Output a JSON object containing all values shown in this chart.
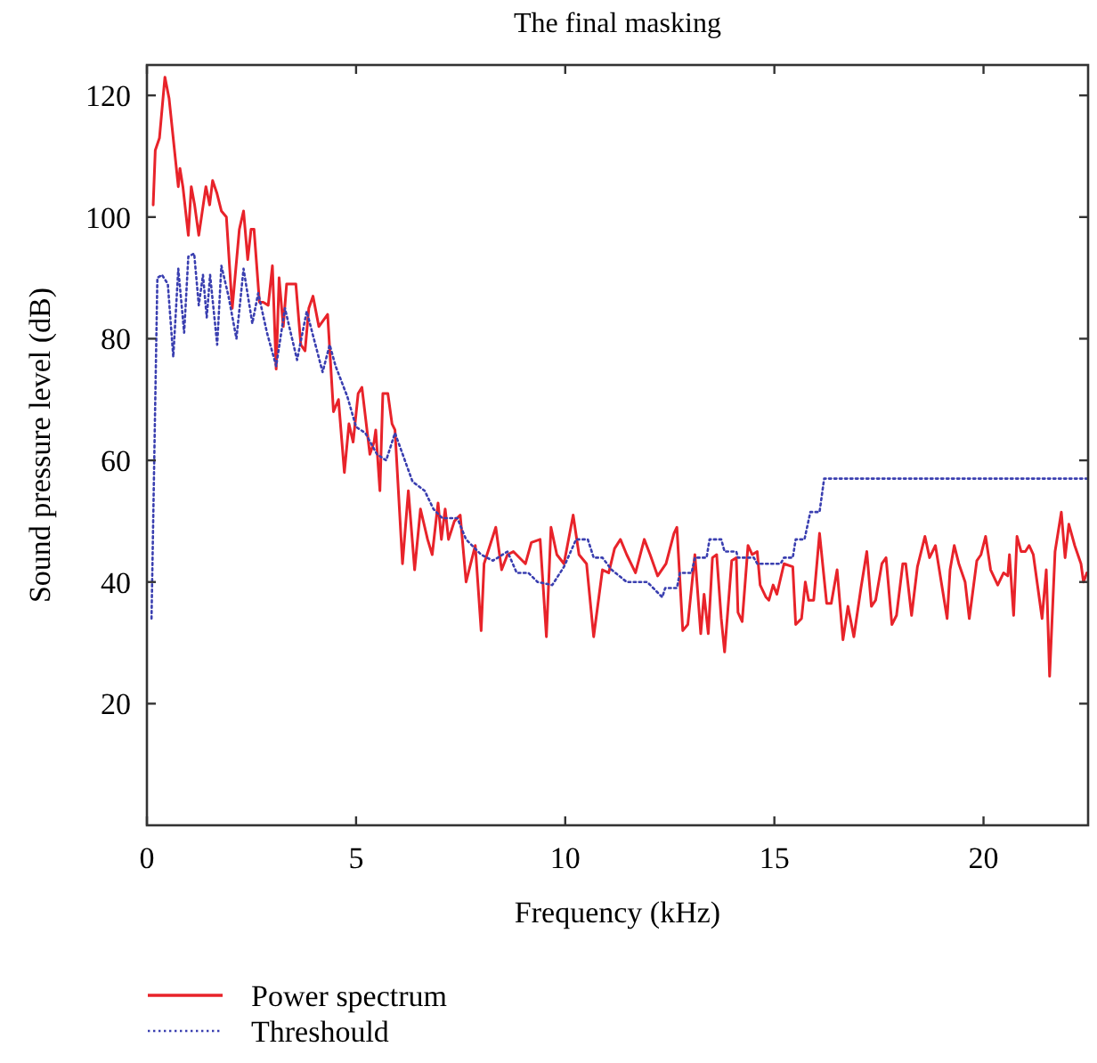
{
  "chart_data": {
    "type": "line",
    "title": "The final masking",
    "xlabel": "Frequency (kHz)",
    "ylabel": "Sound pressure level (dB)",
    "xlim": [
      0,
      22.5
    ],
    "xticks": [
      0,
      5,
      10,
      15,
      20
    ],
    "ylim": [
      0,
      125
    ],
    "yticks": [
      20,
      40,
      60,
      80,
      100,
      120
    ],
    "grid": false,
    "legend": "bottom",
    "marker": "none",
    "series": [
      {
        "name": "Power spectrum",
        "color": "#e8232a",
        "line_style": "solid",
        "x": [
          0.15,
          0.2,
          0.3,
          0.43,
          0.53,
          0.75,
          0.79,
          0.86,
          0.99,
          1.06,
          1.14,
          1.24,
          1.41,
          1.5,
          1.57,
          1.67,
          1.78,
          1.9,
          2.04,
          2.21,
          2.31,
          2.41,
          2.49,
          2.56,
          2.69,
          2.78,
          2.9,
          3.0,
          3.09,
          3.16,
          3.26,
          3.34,
          3.46,
          3.56,
          3.68,
          3.78,
          3.87,
          3.97,
          4.11,
          4.32,
          4.46,
          4.58,
          4.72,
          4.83,
          4.93,
          5.05,
          5.14,
          5.33,
          5.43,
          5.47,
          5.57,
          5.64,
          5.76,
          5.86,
          5.93,
          6.11,
          6.25,
          6.4,
          6.54,
          6.71,
          6.82,
          6.96,
          7.04,
          7.13,
          7.21,
          7.35,
          7.49,
          7.63,
          7.85,
          7.99,
          8.06,
          8.34,
          8.48,
          8.62,
          8.76,
          9.05,
          9.19,
          9.4,
          9.55,
          9.66,
          9.8,
          9.97,
          10.19,
          10.33,
          10.51,
          10.68,
          10.89,
          11.04,
          11.18,
          11.32,
          11.47,
          11.68,
          11.89,
          12.03,
          12.21,
          12.41,
          12.6,
          12.67,
          12.81,
          12.93,
          13.1,
          13.24,
          13.32,
          13.42,
          13.52,
          13.62,
          13.73,
          13.81,
          13.98,
          14.09,
          14.13,
          14.23,
          14.37,
          14.47,
          14.59,
          14.66,
          14.8,
          14.87,
          14.97,
          15.06,
          15.23,
          15.44,
          15.51,
          15.65,
          15.74,
          15.82,
          15.94,
          16.08,
          16.25,
          16.36,
          16.5,
          16.64,
          16.76,
          16.9,
          17.07,
          17.21,
          17.32,
          17.42,
          17.57,
          17.67,
          17.81,
          17.92,
          18.07,
          18.14,
          18.28,
          18.42,
          18.6,
          18.71,
          18.85,
          18.99,
          19.13,
          19.2,
          19.3,
          19.41,
          19.56,
          19.66,
          19.84,
          19.94,
          20.05,
          20.17,
          20.34,
          20.48,
          20.58,
          20.62,
          20.72,
          20.8,
          20.9,
          21.0,
          21.09,
          21.19,
          21.3,
          21.4,
          21.5,
          21.58,
          21.71,
          21.86,
          21.95,
          22.04,
          22.18,
          22.33,
          22.39,
          22.47
        ],
        "values": [
          102,
          111,
          113,
          123,
          119.5,
          105,
          108,
          105,
          97,
          105,
          102,
          97,
          105,
          102,
          106,
          104,
          101,
          100,
          85,
          98,
          101,
          93,
          98,
          98,
          86,
          86,
          85.5,
          92,
          75,
          90,
          82,
          89,
          89,
          89,
          79,
          78,
          85,
          87,
          82,
          84,
          68,
          70,
          58,
          66,
          63,
          71,
          72,
          61,
          63,
          65,
          55,
          71,
          71,
          66,
          65,
          43,
          55,
          42,
          52,
          47,
          44.5,
          53,
          47,
          52,
          47,
          50,
          51,
          40,
          46,
          32,
          43,
          49,
          42,
          44.5,
          45,
          43,
          46.5,
          47,
          31,
          49,
          44.5,
          43,
          51,
          44.5,
          43,
          31,
          42,
          41.5,
          45.5,
          47,
          44.5,
          41.5,
          47,
          44.5,
          41,
          43,
          48,
          49,
          32,
          33,
          44.5,
          31.5,
          38,
          31.5,
          44,
          44.5,
          34,
          28.5,
          43.5,
          44,
          35,
          33.5,
          46,
          44.5,
          45,
          39.5,
          37.5,
          37,
          39.5,
          38,
          43,
          42.5,
          33,
          34,
          40,
          37,
          37,
          48,
          36.5,
          36.5,
          42,
          30.5,
          36,
          31,
          39,
          45,
          36,
          37,
          43,
          44,
          33,
          34.5,
          43,
          43,
          34.5,
          42.5,
          47.5,
          44,
          46,
          40,
          34,
          42,
          46,
          43,
          40,
          34,
          43.5,
          44.5,
          47.5,
          42,
          39.5,
          41.5,
          41,
          44.5,
          34.5,
          47.5,
          45,
          45,
          46,
          44.5,
          39,
          34,
          42,
          24.5,
          45,
          51.5,
          44,
          49.5,
          46,
          43,
          40,
          41.5
        ]
      },
      {
        "name": "Threshould",
        "color": "#3a3fb0",
        "line_style": "dotted",
        "x": [
          0.11,
          0.25,
          0.36,
          0.5,
          0.63,
          0.75,
          0.89,
          0.99,
          1.13,
          1.24,
          1.34,
          1.43,
          1.51,
          1.68,
          1.78,
          1.95,
          2.14,
          2.31,
          2.52,
          2.66,
          2.87,
          3.09,
          3.3,
          3.59,
          3.82,
          4.2,
          4.37,
          4.51,
          4.79,
          5.0,
          5.22,
          5.5,
          5.72,
          5.93,
          6.14,
          6.35,
          6.64,
          6.85,
          7.06,
          7.42,
          7.63,
          7.99,
          8.27,
          8.62,
          8.84,
          9.12,
          9.34,
          9.69,
          9.97,
          10.26,
          10.54,
          10.68,
          10.89,
          11.11,
          11.47,
          11.96,
          12.32,
          12.39,
          12.67,
          12.74,
          13.02,
          13.1,
          13.38,
          13.45,
          13.73,
          13.81,
          14.09,
          14.13,
          14.51,
          14.59,
          15.15,
          15.23,
          15.44,
          15.51,
          15.72,
          15.86,
          16.08,
          16.19,
          22.47
        ],
        "values": [
          34,
          90,
          90.5,
          89,
          77,
          91.5,
          81,
          93.5,
          94,
          85.5,
          90.5,
          83.5,
          90.5,
          79,
          92,
          87,
          80,
          91.5,
          82.5,
          87.5,
          81,
          75.5,
          85,
          76.5,
          84.5,
          74.5,
          79,
          75.5,
          70.5,
          65.5,
          64.5,
          61,
          60,
          64.5,
          60.5,
          56.5,
          55,
          52,
          50.5,
          50.5,
          47,
          44.5,
          43.5,
          45,
          41.5,
          41.5,
          40,
          39.5,
          42.5,
          47,
          47,
          44,
          44,
          42,
          40,
          40,
          37.5,
          39,
          39,
          41.5,
          41.5,
          44,
          44,
          47,
          47,
          45,
          45,
          44,
          44,
          43,
          43,
          44,
          44,
          47,
          47,
          51.5,
          51.5,
          57,
          57
        ]
      }
    ]
  }
}
